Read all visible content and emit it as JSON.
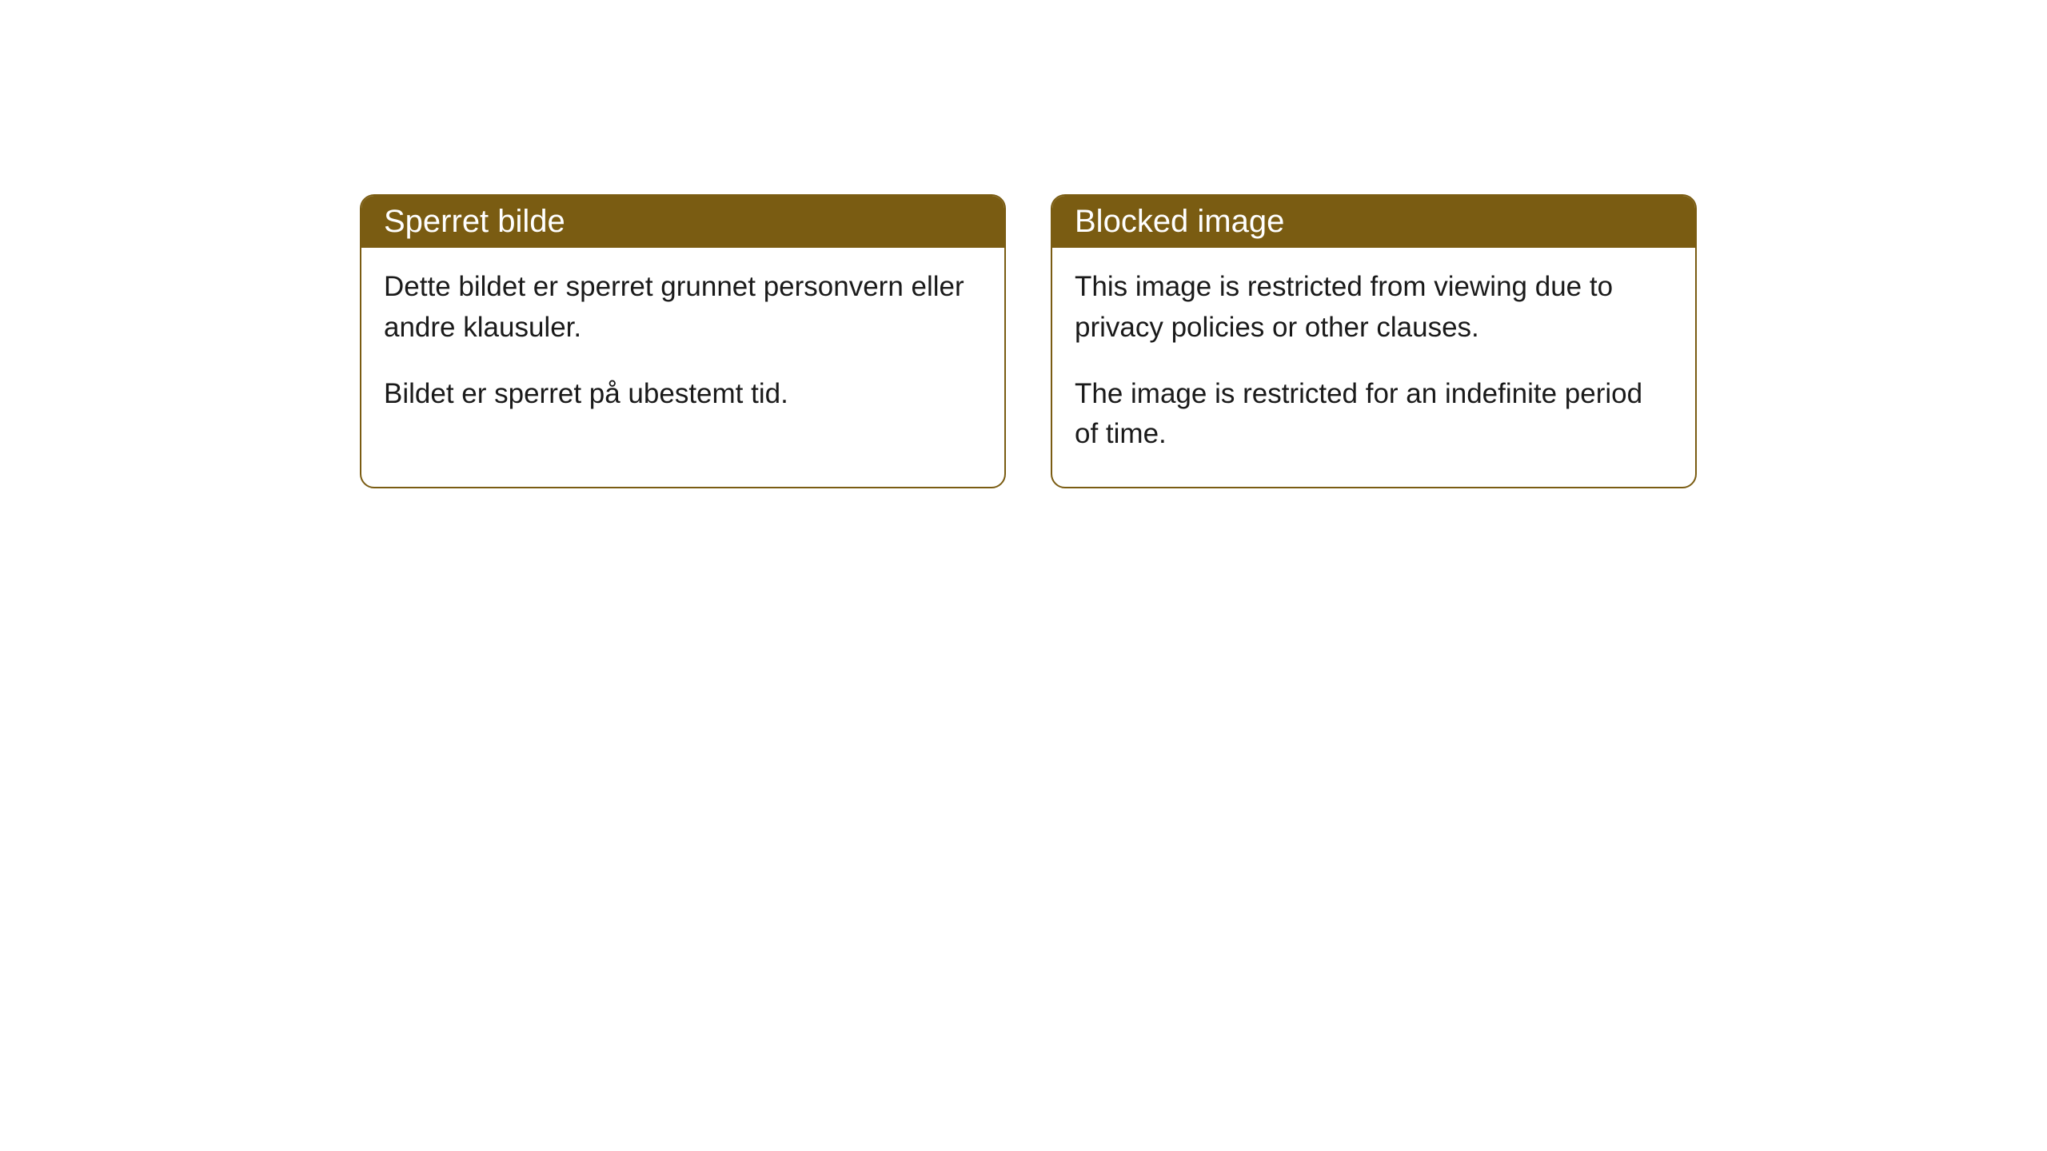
{
  "cards": [
    {
      "title": "Sperret bilde",
      "paragraph1": "Dette bildet er sperret grunnet personvern eller andre klausuler.",
      "paragraph2": "Bildet er sperret på ubestemt tid."
    },
    {
      "title": "Blocked image",
      "paragraph1": "This image is restricted from viewing due to privacy policies or other clauses.",
      "paragraph2": "The image is restricted for an indefinite period of time."
    }
  ],
  "styling": {
    "header_background": "#7a5c12",
    "header_text_color": "#ffffff",
    "border_color": "#7a5c12",
    "body_text_color": "#1a1a1a",
    "card_background": "#ffffff",
    "page_background": "#ffffff",
    "border_radius": 18,
    "header_fontsize": 40,
    "body_fontsize": 35
  }
}
